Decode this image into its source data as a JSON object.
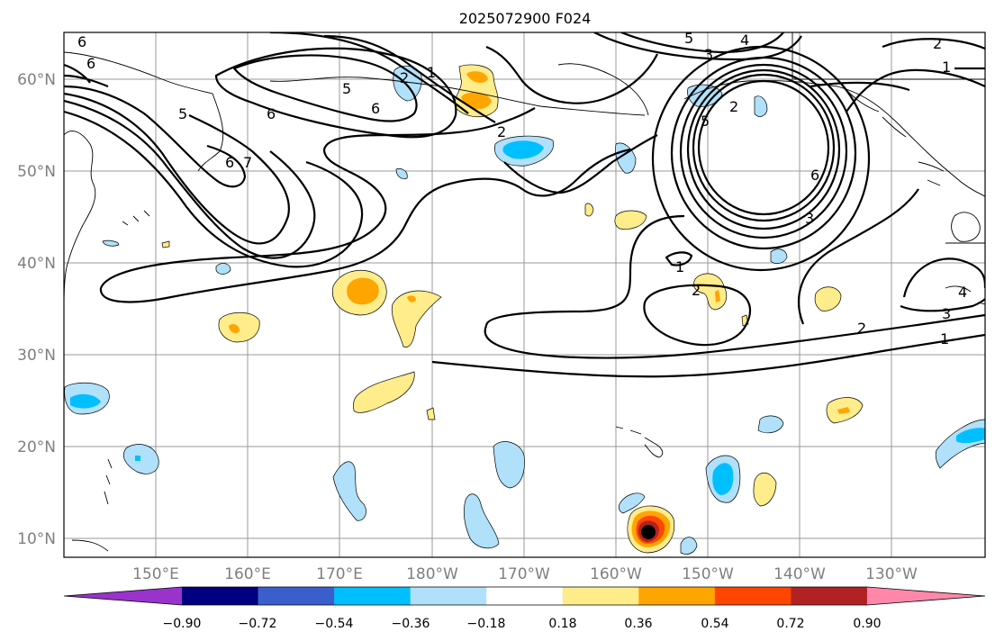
{
  "title": "2025072900 F024",
  "lat_labels": [
    "60°N",
    "50°N",
    "40°N",
    "30°N",
    "20°N",
    "10°N"
  ],
  "lon_labels": [
    "150°E",
    "160°E",
    "170°E",
    "180°W",
    "170°W",
    "160°W",
    "150°W",
    "140°W",
    "130°W"
  ],
  "colorbar": {
    "labels": [
      "−0.90",
      "−0.72",
      "−0.54",
      "−0.36",
      "−0.18",
      "0.18",
      "0.36",
      "0.54",
      "0.72",
      "0.90"
    ],
    "colors": [
      "#9933cc",
      "#000080",
      "#3a5fcd",
      "#00bfff",
      "#b0e0fa",
      "#ffffff",
      "#ffec8b",
      "#ffa500",
      "#ff4500",
      "#b22222",
      "#ff88aa"
    ]
  },
  "contour_labels": [
    {
      "text": "6"
    },
    {
      "text": "6"
    },
    {
      "text": "5"
    },
    {
      "text": "5"
    },
    {
      "text": "6"
    },
    {
      "text": "6"
    },
    {
      "text": "7"
    },
    {
      "text": "2"
    },
    {
      "text": "1"
    },
    {
      "text": "6"
    },
    {
      "text": "2"
    },
    {
      "text": "5"
    },
    {
      "text": "4"
    },
    {
      "text": "3"
    },
    {
      "text": "2"
    },
    {
      "text": "1"
    },
    {
      "text": "2"
    },
    {
      "text": "5"
    },
    {
      "text": "6"
    },
    {
      "text": "3"
    },
    {
      "text": "1"
    },
    {
      "text": "2"
    },
    {
      "text": "4"
    },
    {
      "text": "3"
    },
    {
      "text": "2"
    },
    {
      "text": "1"
    }
  ],
  "legend_colors": {
    "land_outline": "#000000",
    "grid": "#9a9a9a",
    "marker": "#000000"
  }
}
